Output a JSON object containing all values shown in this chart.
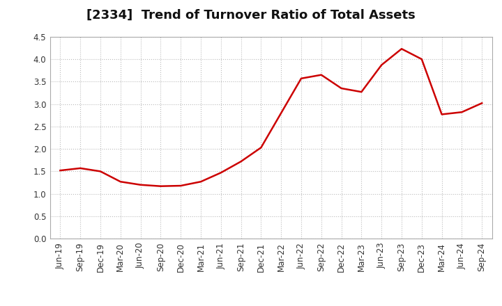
{
  "title": "[2334]  Trend of Turnover Ratio of Total Assets",
  "labels": [
    "Jun-19",
    "Sep-19",
    "Dec-19",
    "Mar-20",
    "Jun-20",
    "Sep-20",
    "Dec-20",
    "Mar-21",
    "Jun-21",
    "Sep-21",
    "Dec-21",
    "Mar-22",
    "Jun-22",
    "Sep-22",
    "Dec-22",
    "Mar-23",
    "Jun-23",
    "Sep-23",
    "Dec-23",
    "Mar-24",
    "Jun-24",
    "Sep-24"
  ],
  "values": [
    1.52,
    1.57,
    1.5,
    1.27,
    1.2,
    1.17,
    1.18,
    1.27,
    1.47,
    1.72,
    2.03,
    2.8,
    3.57,
    3.65,
    3.35,
    3.27,
    3.87,
    4.23,
    4.0,
    2.77,
    2.82,
    3.02
  ],
  "line_color": "#cc0000",
  "background_color": "#ffffff",
  "grid_color": "#bbbbbb",
  "ylim": [
    0.0,
    4.5
  ],
  "yticks": [
    0.0,
    0.5,
    1.0,
    1.5,
    2.0,
    2.5,
    3.0,
    3.5,
    4.0,
    4.5
  ],
  "title_fontsize": 13,
  "tick_fontsize": 8.5,
  "line_width": 1.8
}
